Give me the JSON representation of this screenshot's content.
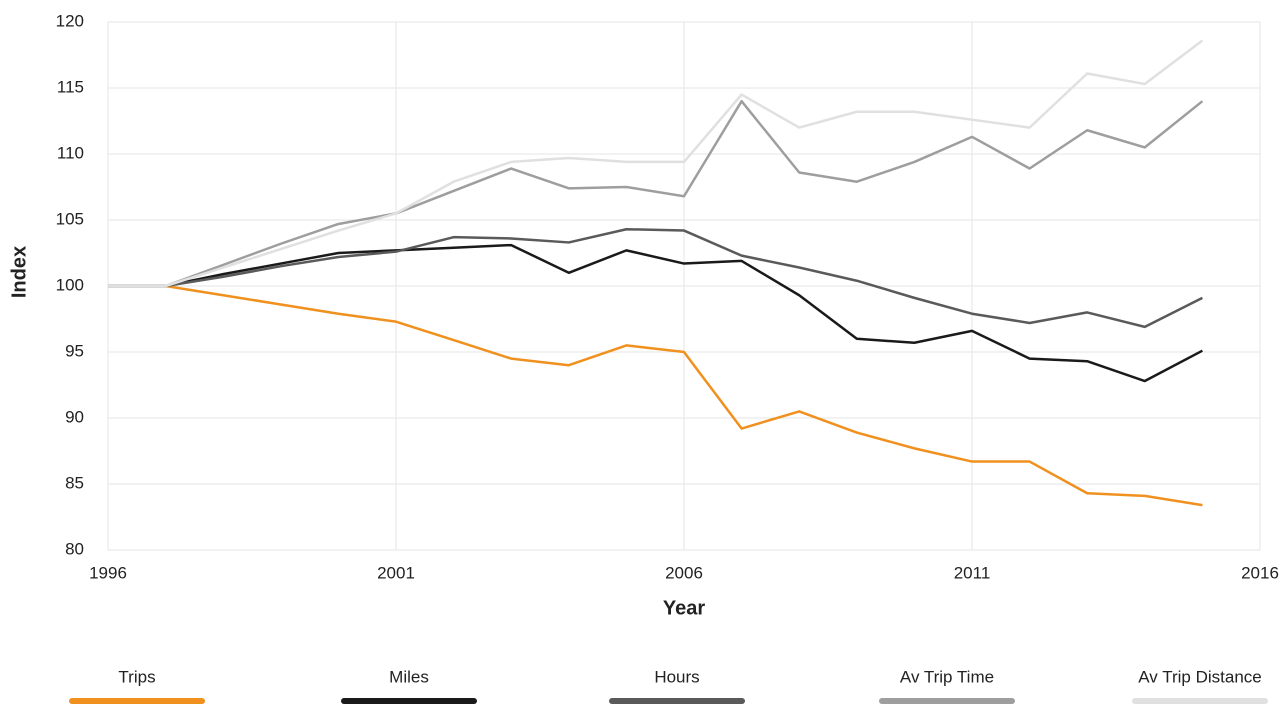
{
  "chart_data": {
    "type": "line",
    "x": [
      1996,
      1997,
      1998,
      1999,
      2000,
      2001,
      2002,
      2003,
      2004,
      2005,
      2006,
      2007,
      2008,
      2009,
      2010,
      2011,
      2012,
      2013,
      2014,
      2015
    ],
    "xlabel": "Year",
    "ylabel": "Index",
    "xlim": [
      1996,
      2016
    ],
    "xticks": [
      1996,
      2001,
      2006,
      2011,
      2016
    ],
    "ylim": [
      80,
      120
    ],
    "yticks": [
      80,
      85,
      90,
      95,
      100,
      105,
      110,
      115,
      120
    ],
    "grid": true,
    "legend": "bottom",
    "series": [
      {
        "name": "Trips",
        "color": "#f0901e",
        "values": [
          100,
          100,
          99.3,
          98.6,
          97.9,
          97.3,
          95.9,
          94.5,
          94.0,
          95.5,
          95.0,
          89.2,
          90.5,
          88.9,
          87.7,
          86.7,
          86.7,
          84.3,
          84.1,
          83.4
        ]
      },
      {
        "name": "Miles",
        "color": "#1a1a1a",
        "values": [
          100,
          100,
          100.9,
          101.7,
          102.5,
          102.7,
          102.9,
          103.1,
          101.0,
          102.7,
          101.7,
          101.9,
          99.3,
          96.0,
          95.7,
          96.6,
          94.5,
          94.3,
          92.8,
          95.1
        ]
      },
      {
        "name": "Hours",
        "color": "#5a5a5a",
        "values": [
          100,
          100,
          100.7,
          101.5,
          102.2,
          102.6,
          103.7,
          103.6,
          103.3,
          104.3,
          104.2,
          102.3,
          101.4,
          100.4,
          99.1,
          97.9,
          97.2,
          98.0,
          96.9,
          99.1
        ]
      },
      {
        "name": "Av Trip Time",
        "color": "#9e9e9e",
        "values": [
          100,
          100,
          101.6,
          103.2,
          104.7,
          105.5,
          107.2,
          108.9,
          107.4,
          107.5,
          106.8,
          114.0,
          108.6,
          107.9,
          109.4,
          111.3,
          108.9,
          111.8,
          110.5,
          114.0
        ]
      },
      {
        "name": "Av Trip Distance",
        "color": "#e0e0e0",
        "values": [
          100,
          100,
          101.4,
          102.8,
          104.2,
          105.5,
          107.9,
          109.4,
          109.7,
          109.4,
          109.4,
          114.5,
          112.0,
          113.2,
          113.2,
          112.6,
          112.0,
          116.1,
          115.3,
          118.6
        ]
      }
    ]
  }
}
